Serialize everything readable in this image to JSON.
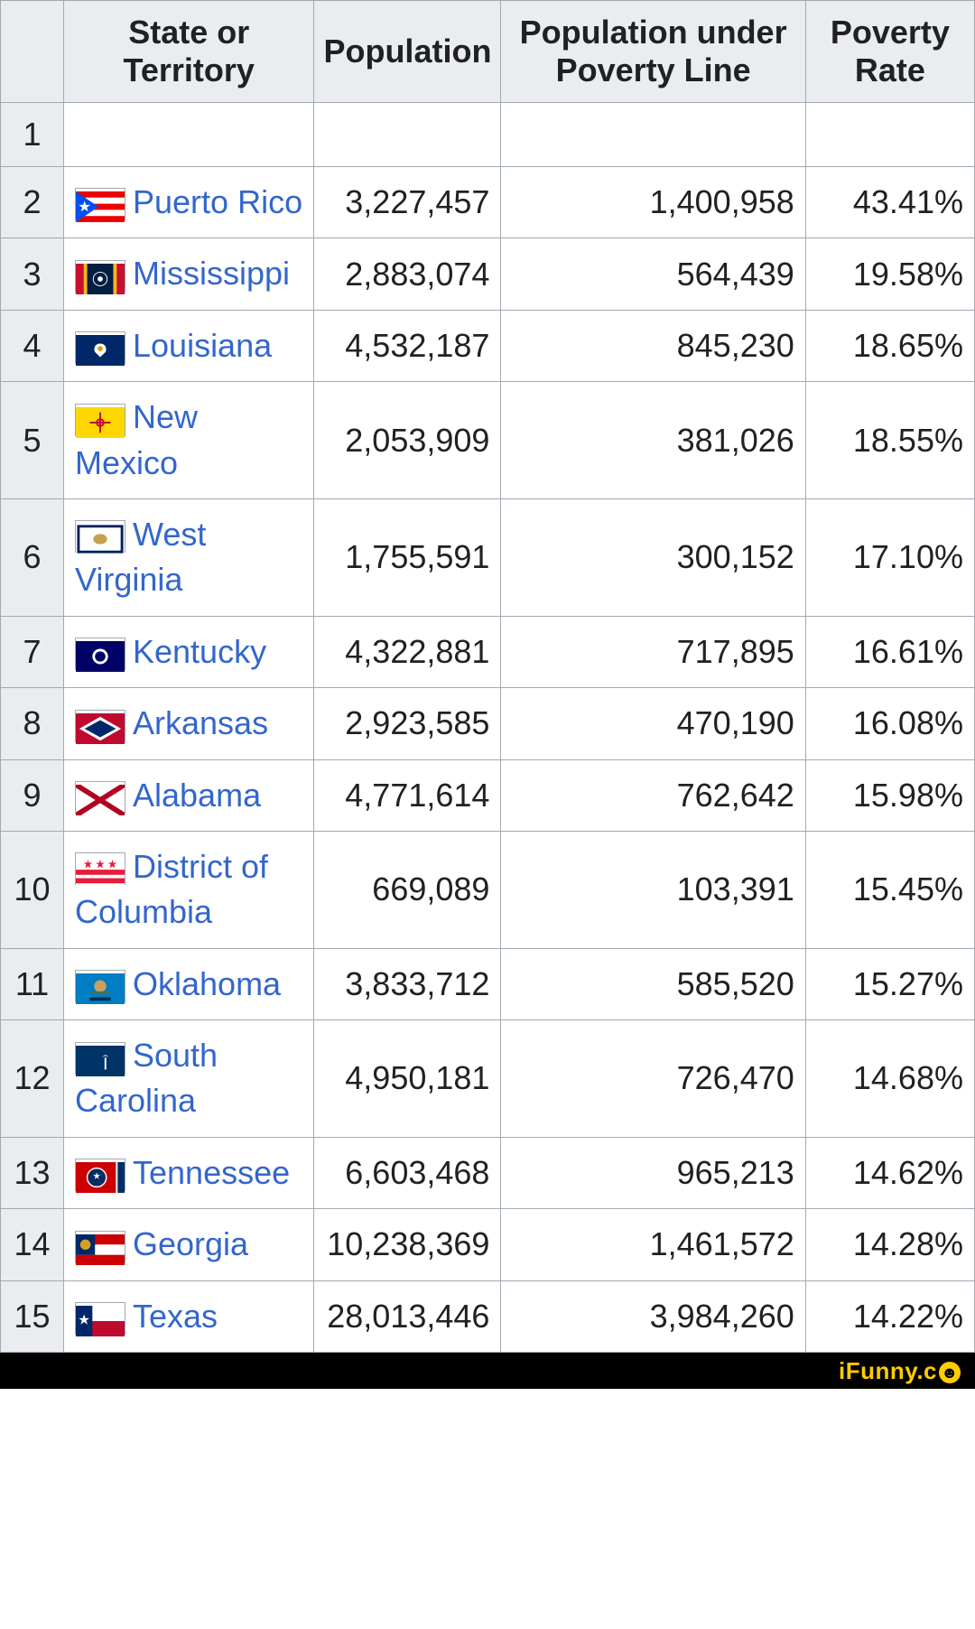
{
  "table": {
    "columns": [
      "",
      "State or Territory",
      "Population",
      "Population under Poverty Line",
      "Poverty Rate"
    ],
    "header_bg": "#eaecf0",
    "border_color": "#a2a9b1",
    "link_color": "#3366cc",
    "cell_fontsize": 36,
    "rows": [
      {
        "rank": "1",
        "state": "",
        "population": "",
        "under_poverty": "",
        "rate": "",
        "flag_svg": ""
      },
      {
        "rank": "2",
        "state": "Puerto Rico",
        "population": "3,227,457",
        "under_poverty": "1,400,958",
        "rate": "43.41%",
        "flag_svg": "<svg viewBox='0 0 56 36' preserveAspectRatio='none'><rect width='56' height='36' fill='#ed0000'/><rect y='7.2' width='56' height='7.2' fill='#fff'/><rect y='21.6' width='56' height='7.2' fill='#fff'/><polygon points='0,0 0,36 26,18' fill='#0050f0'/><polygon points='10,11 11.6,15.8 16.6,15.8 12.6,18.8 14.2,23.6 10,20.6 5.8,23.6 7.4,18.8 3.4,15.8 8.4,15.8' fill='#fff'/></svg>"
      },
      {
        "rank": "3",
        "state": "Mississippi",
        "population": "2,883,074",
        "under_poverty": "564,439",
        "rate": "19.58%",
        "flag_svg": "<svg viewBox='0 0 56 36' preserveAspectRatio='none'><rect width='56' height='36' fill='#041e42'/><rect x='0' width='9' height='36' fill='#c8102e'/><rect x='9' width='4' height='36' fill='#ffb81c'/><rect x='47' width='9' height='36' fill='#c8102e'/><rect x='43' width='4' height='36' fill='#ffb81c'/><circle cx='28' cy='18' r='8' fill='none' stroke='#fff' stroke-width='1'/><circle cx='28' cy='18' r='3' fill='#fff'/></svg>"
      },
      {
        "rank": "4",
        "state": "Louisiana",
        "population": "4,532,187",
        "under_poverty": "845,230",
        "rate": "18.65%",
        "flag_svg": "<svg viewBox='0 0 56 36' preserveAspectRatio='none'><rect width='56' height='36' fill='#002868'/><path d='M28 10 C22 10 20 16 22 20 L28 26 L34 20 C36 16 34 10 28 10' fill='#fff'/><circle cx='28' cy='16' r='3' fill='#d4a020'/></svg>"
      },
      {
        "rank": "5",
        "state": "New Mexico",
        "population": "2,053,909",
        "under_poverty": "381,026",
        "rate": "18.55%",
        "flag_svg": "<svg viewBox='0 0 56 36' preserveAspectRatio='none'><rect width='56' height='36' fill='#ffd700'/><circle cx='28' cy='18' r='4' fill='none' stroke='#bf0a30' stroke-width='2'/><line x1='28' y1='6' x2='28' y2='30' stroke='#bf0a30' stroke-width='2'/><line x1='16' y1='18' x2='40' y2='18' stroke='#bf0a30' stroke-width='2'/></svg>"
      },
      {
        "rank": "6",
        "state": "West Virginia",
        "population": "1,755,591",
        "under_poverty": "300,152",
        "rate": "17.10%",
        "flag_svg": "<svg viewBox='0 0 56 36' preserveAspectRatio='none'><rect width='56' height='36' fill='#fff'/><rect x='3' y='3' width='50' height='30' fill='none' stroke='#00205b' stroke-width='3'/><ellipse cx='28' cy='18' rx='8' ry='6' fill='#c8a050'/></svg>"
      },
      {
        "rank": "7",
        "state": "Kentucky",
        "population": "4,322,881",
        "under_poverty": "717,895",
        "rate": "16.61%",
        "flag_svg": "<svg viewBox='0 0 56 36' preserveAspectRatio='none'><rect width='56' height='36' fill='#000066'/><circle cx='28' cy='18' r='9' fill='#fff'/><circle cx='28' cy='18' r='6' fill='#000066'/></svg>"
      },
      {
        "rank": "8",
        "state": "Arkansas",
        "population": "2,923,585",
        "under_poverty": "470,190",
        "rate": "16.08%",
        "flag_svg": "<svg viewBox='0 0 56 36' preserveAspectRatio='none'><rect width='56' height='36' fill='#bf0a30'/><polygon points='28,4 52,18 28,32 4,18' fill='#fff'/><polygon points='28,8 46,18 28,28 10,18' fill='#002868'/></svg>"
      },
      {
        "rank": "9",
        "state": "Alabama",
        "population": "4,771,614",
        "under_poverty": "762,642",
        "rate": "15.98%",
        "flag_svg": "<svg viewBox='0 0 56 36' preserveAspectRatio='none'><rect width='56' height='36' fill='#fff'/><line x1='0' y1='0' x2='56' y2='36' stroke='#b10021' stroke-width='6'/><line x1='56' y1='0' x2='0' y2='36' stroke='#b10021' stroke-width='6'/></svg>"
      },
      {
        "rank": "10",
        "state": "District of Columbia",
        "population": "669,089",
        "under_poverty": "103,391",
        "rate": "15.45%",
        "flag_svg": "<svg viewBox='0 0 56 36' preserveAspectRatio='none'><rect width='56' height='36' fill='#fff'/><rect y='16' width='56' height='6' fill='#e81b39'/><rect y='26' width='56' height='6' fill='#e81b39'/><polygon points='14,4 15,8 19,8 16,10 17,14 14,12 11,14 12,10 9,8 13,8' fill='#e81b39'/><polygon points='28,4 29,8 33,8 30,10 31,14 28,12 25,14 26,10 23,8 27,8' fill='#e81b39'/><polygon points='42,4 43,8 47,8 44,10 45,14 42,12 39,14 40,10 37,8 41,8' fill='#e81b39'/></svg>"
      },
      {
        "rank": "11",
        "state": "Oklahoma",
        "population": "3,833,712",
        "under_poverty": "585,520",
        "rate": "15.27%",
        "flag_svg": "<svg viewBox='0 0 56 36' preserveAspectRatio='none'><rect width='56' height='36' fill='#007dc3'/><circle cx='28' cy='15' r='7' fill='#c8a060'/><line x1='18' y1='22' x2='38' y2='22' stroke='#5a7030' stroke-width='2'/><rect x='16' y='28' width='24' height='4' fill='#003050'/></svg>"
      },
      {
        "rank": "12",
        "state": "South Carolina",
        "population": "4,950,181",
        "under_poverty": "726,470",
        "rate": "14.68%",
        "flag_svg": "<svg viewBox='0 0 56 36' preserveAspectRatio='none'><rect width='56' height='36' fill='#003366'/><path d='M14 8 A6 6 0 1 0 14 20 A5 5 0 1 1 14 8' fill='#fff'/><line x1='34' y1='28' x2='34' y2='14' stroke='#fff' stroke-width='2'/><path d='M30 14 Q34 8 38 14 Q36 12 34 12 Q32 12 30 14' fill='#fff'/></svg>"
      },
      {
        "rank": "13",
        "state": "Tennessee",
        "population": "6,603,468",
        "under_poverty": "965,213",
        "rate": "14.62%",
        "flag_svg": "<svg viewBox='0 0 56 36' preserveAspectRatio='none'><rect width='56' height='36' fill='#cc0000'/><rect x='48' width='8' height='36' fill='#002d65'/><rect x='46' width='2' height='36' fill='#fff'/><circle cx='24' cy='18' r='10' fill='#002d65'/><circle cx='24' cy='18' r='11' fill='none' stroke='#fff' stroke-width='1.5'/><polygon points='24,12 25,15 28,15 25.5,17 26.5,20 24,18 21.5,20 22.5,17 20,15 23,15' fill='#fff'/></svg>"
      },
      {
        "rank": "14",
        "state": "Georgia",
        "population": "10,238,369",
        "under_poverty": "1,461,572",
        "rate": "14.28%",
        "flag_svg": "<svg viewBox='0 0 56 36' preserveAspectRatio='none'><rect width='56' height='12' fill='#cc0000'/><rect y='12' width='56' height='12' fill='#fff'/><rect y='24' width='56' height='12' fill='#cc0000'/><rect width='22' height='24' fill='#002868'/><circle cx='11' cy='12' r='6' fill='#d4a020'/></svg>"
      },
      {
        "rank": "15",
        "state": "Texas",
        "population": "28,013,446",
        "under_poverty": "3,984,260",
        "rate": "14.22%",
        "flag_svg": "<svg viewBox='0 0 56 36' preserveAspectRatio='none'><rect width='56' height='18' fill='#fff'/><rect y='18' width='56' height='18' fill='#bf0a30'/><rect width='19' height='36' fill='#002868'/><polygon points='9.5,10 11,14.5 15.5,14.5 12,17.5 13.5,22 9.5,19 5.5,22 7,17.5 3.5,14.5 8,14.5' fill='#fff'/></svg>"
      }
    ]
  },
  "watermark": "iFunny"
}
